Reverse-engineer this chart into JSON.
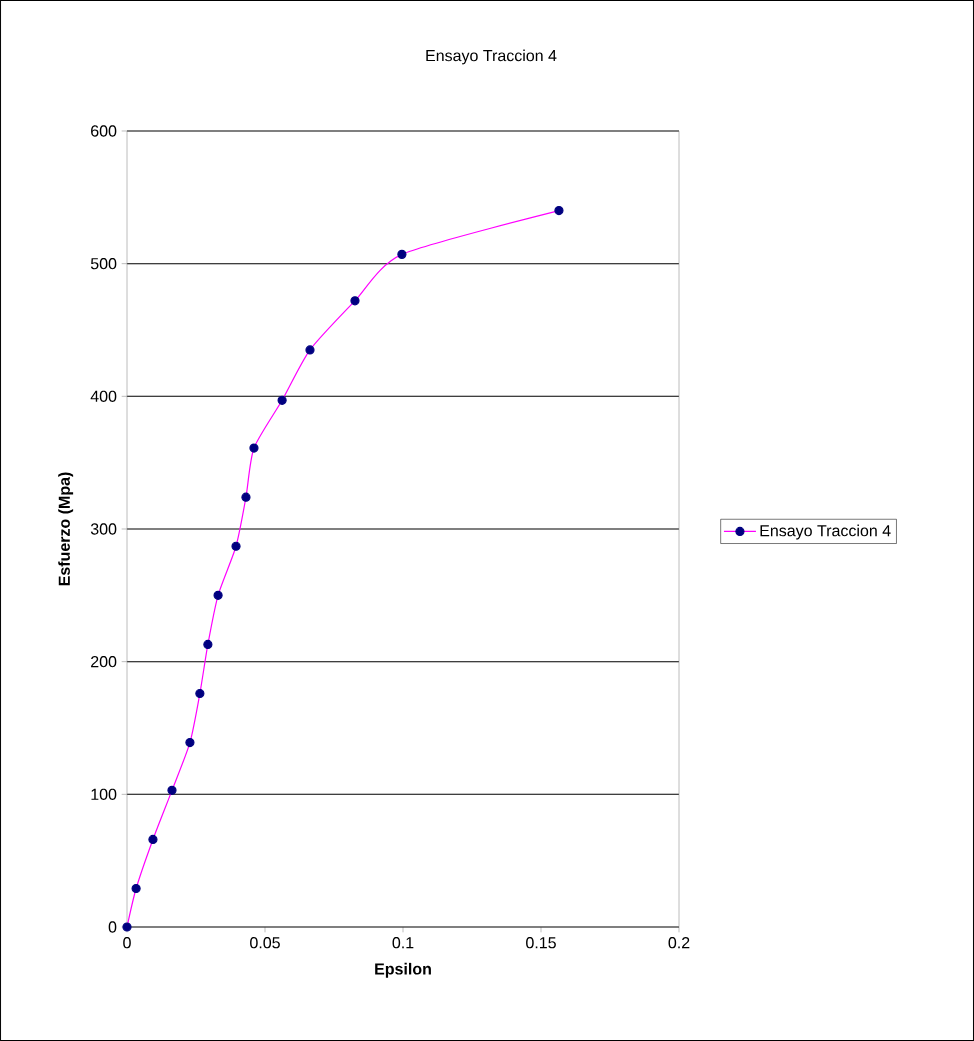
{
  "chart_data": {
    "type": "line",
    "title": "Ensayo Traccion 4",
    "xlabel": "Epsilon",
    "ylabel": "Esfuerzo (Mpa)",
    "x": [
      0,
      0.0033,
      0.0094,
      0.0163,
      0.0228,
      0.0264,
      0.0293,
      0.033,
      0.0395,
      0.0431,
      0.046,
      0.0562,
      0.0663,
      0.0826,
      0.0996,
      0.1565
    ],
    "series": [
      {
        "name": "Ensayo Traccion 4",
        "color": "#ff00ff",
        "values": [
          0,
          29,
          66,
          103,
          139,
          176,
          213,
          250,
          287,
          324,
          361,
          397,
          435,
          472,
          507,
          540
        ]
      }
    ],
    "xlim": [
      0,
      0.2
    ],
    "ylim": [
      0,
      600
    ],
    "xticks": [
      0,
      0.05,
      0.1,
      0.15,
      0.2
    ],
    "yticks": [
      0,
      100,
      200,
      300,
      400,
      500,
      600
    ],
    "grid": "y",
    "legend": "right",
    "marker": "circle",
    "line_style": "solid"
  }
}
